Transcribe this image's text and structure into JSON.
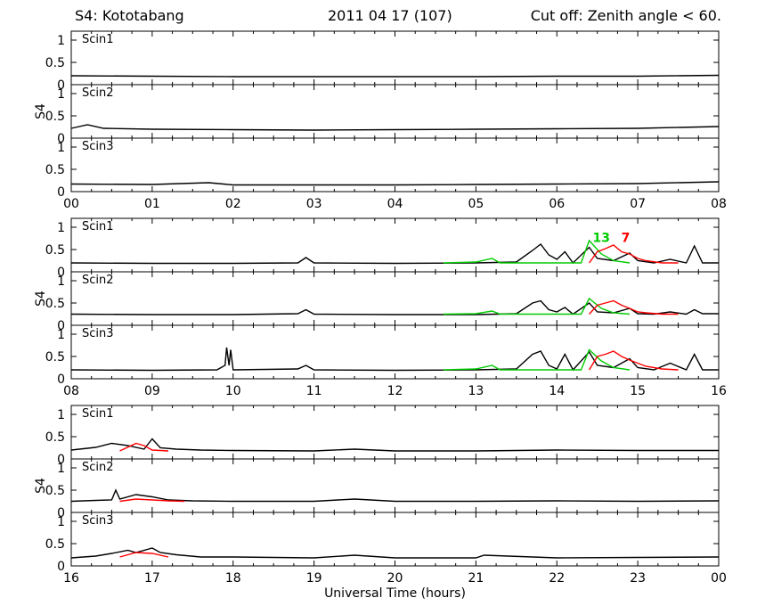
{
  "header": {
    "station": "S4: Kototabang",
    "date": "2011 04 17 (107)",
    "cutoff": "Cut off: Zenith angle < 60."
  },
  "xlabel": "Universal Time (hours)",
  "ylabel": "S4",
  "colors": {
    "axis": "#000000",
    "black_series": "#000000",
    "green_series": "#00cc00",
    "red_series": "#ff0000"
  },
  "chart_data": {
    "type": "line",
    "ylim": [
      0,
      1.2
    ],
    "yticks": [
      0,
      0.5,
      1
    ],
    "receivers": [
      "Scin1",
      "Scin2",
      "Scin3"
    ],
    "groups": [
      {
        "xticks": [
          "00",
          "01",
          "02",
          "03",
          "04",
          "05",
          "06",
          "07",
          "08"
        ],
        "xlim": [
          0,
          8
        ],
        "panels": [
          {
            "receiver": "Scin1",
            "series": [
              {
                "color": "black",
                "x": [
                  0,
                  1,
                  2,
                  3,
                  4,
                  5,
                  6,
                  7,
                  8
                ],
                "y": [
                  0.2,
                  0.19,
                  0.18,
                  0.18,
                  0.18,
                  0.18,
                  0.19,
                  0.19,
                  0.21
                ]
              }
            ]
          },
          {
            "receiver": "Scin2",
            "series": [
              {
                "color": "black",
                "x": [
                  0,
                  0.2,
                  0.4,
                  1,
                  2,
                  3,
                  4,
                  5,
                  6,
                  7,
                  8
                ],
                "y": [
                  0.22,
                  0.3,
                  0.22,
                  0.2,
                  0.19,
                  0.18,
                  0.19,
                  0.2,
                  0.21,
                  0.22,
                  0.26
                ]
              }
            ]
          },
          {
            "receiver": "Scin3",
            "series": [
              {
                "color": "black",
                "x": [
                  0,
                  1,
                  1.7,
                  2,
                  3,
                  4,
                  5,
                  6,
                  7,
                  8
                ],
                "y": [
                  0.17,
                  0.16,
                  0.2,
                  0.15,
                  0.15,
                  0.15,
                  0.16,
                  0.17,
                  0.18,
                  0.22
                ]
              }
            ]
          }
        ]
      },
      {
        "xticks": [
          "08",
          "09",
          "10",
          "11",
          "12",
          "13",
          "14",
          "15",
          "16"
        ],
        "xlim": [
          8,
          16
        ],
        "annotations": [
          {
            "text": "13",
            "color": "green",
            "x": 14.55,
            "y": 0.75
          },
          {
            "text": "7",
            "color": "red",
            "x": 14.85,
            "y": 0.75
          }
        ],
        "panels": [
          {
            "receiver": "Scin1",
            "series": [
              {
                "color": "black",
                "x": [
                  8,
                  9,
                  10,
                  10.8,
                  10.9,
                  11,
                  12,
                  13,
                  13.5,
                  13.7,
                  13.8,
                  13.9,
                  14.0,
                  14.1,
                  14.2,
                  14.4,
                  14.5,
                  14.7,
                  14.9,
                  15.0,
                  15.2,
                  15.4,
                  15.6,
                  15.7,
                  15.8,
                  16
                ],
                "y": [
                  0.2,
                  0.19,
                  0.19,
                  0.2,
                  0.32,
                  0.2,
                  0.19,
                  0.2,
                  0.22,
                  0.48,
                  0.62,
                  0.38,
                  0.28,
                  0.45,
                  0.2,
                  0.55,
                  0.3,
                  0.25,
                  0.42,
                  0.25,
                  0.2,
                  0.28,
                  0.2,
                  0.58,
                  0.2,
                  0.2
                ]
              },
              {
                "color": "green",
                "x": [
                  12.6,
                  13.0,
                  13.2,
                  13.3,
                  13.5,
                  14.3,
                  14.4,
                  14.55,
                  14.7,
                  14.9
                ],
                "y": [
                  0.2,
                  0.22,
                  0.3,
                  0.2,
                  0.2,
                  0.2,
                  0.7,
                  0.4,
                  0.25,
                  0.2
                ]
              },
              {
                "color": "red",
                "x": [
                  14.4,
                  14.5,
                  14.6,
                  14.7,
                  14.8,
                  14.9,
                  15.0,
                  15.1,
                  15.3,
                  15.5
                ],
                "y": [
                  0.2,
                  0.45,
                  0.52,
                  0.6,
                  0.45,
                  0.4,
                  0.3,
                  0.25,
                  0.2,
                  0.2
                ]
              }
            ]
          },
          {
            "receiver": "Scin2",
            "series": [
              {
                "color": "black",
                "x": [
                  8,
                  9,
                  10,
                  10.8,
                  10.9,
                  11,
                  12,
                  13,
                  13.5,
                  13.7,
                  13.8,
                  13.9,
                  14.0,
                  14.1,
                  14.2,
                  14.4,
                  14.5,
                  14.7,
                  14.9,
                  15.0,
                  15.2,
                  15.4,
                  15.6,
                  15.7,
                  15.8,
                  16
                ],
                "y": [
                  0.25,
                  0.24,
                  0.24,
                  0.26,
                  0.35,
                  0.25,
                  0.24,
                  0.24,
                  0.26,
                  0.5,
                  0.55,
                  0.35,
                  0.3,
                  0.4,
                  0.25,
                  0.5,
                  0.3,
                  0.28,
                  0.38,
                  0.26,
                  0.25,
                  0.3,
                  0.25,
                  0.35,
                  0.26,
                  0.26
                ]
              },
              {
                "color": "green",
                "x": [
                  12.6,
                  13.0,
                  13.2,
                  13.3,
                  13.5,
                  14.3,
                  14.4,
                  14.55,
                  14.7,
                  14.9
                ],
                "y": [
                  0.25,
                  0.26,
                  0.32,
                  0.25,
                  0.25,
                  0.25,
                  0.6,
                  0.38,
                  0.28,
                  0.25
                ]
              },
              {
                "color": "red",
                "x": [
                  14.4,
                  14.5,
                  14.6,
                  14.7,
                  14.8,
                  14.9,
                  15.0,
                  15.1,
                  15.3,
                  15.5
                ],
                "y": [
                  0.25,
                  0.45,
                  0.5,
                  0.55,
                  0.45,
                  0.38,
                  0.3,
                  0.28,
                  0.25,
                  0.25
                ]
              }
            ]
          },
          {
            "receiver": "Scin3",
            "series": [
              {
                "color": "black",
                "x": [
                  8,
                  9,
                  9.8,
                  9.9,
                  9.92,
                  9.95,
                  9.97,
                  10,
                  10.8,
                  10.9,
                  11,
                  12,
                  13,
                  13.5,
                  13.7,
                  13.8,
                  13.9,
                  14.0,
                  14.1,
                  14.2,
                  14.4,
                  14.5,
                  14.7,
                  14.9,
                  15.0,
                  15.2,
                  15.4,
                  15.6,
                  15.7,
                  15.8,
                  16
                ],
                "y": [
                  0.2,
                  0.19,
                  0.2,
                  0.3,
                  0.7,
                  0.3,
                  0.65,
                  0.2,
                  0.22,
                  0.3,
                  0.2,
                  0.19,
                  0.2,
                  0.22,
                  0.55,
                  0.62,
                  0.3,
                  0.22,
                  0.55,
                  0.2,
                  0.6,
                  0.3,
                  0.25,
                  0.45,
                  0.25,
                  0.2,
                  0.35,
                  0.2,
                  0.55,
                  0.2,
                  0.2
                ]
              },
              {
                "color": "green",
                "x": [
                  12.6,
                  13.0,
                  13.2,
                  13.3,
                  13.5,
                  14.3,
                  14.4,
                  14.55,
                  14.7,
                  14.9
                ],
                "y": [
                  0.2,
                  0.22,
                  0.3,
                  0.2,
                  0.2,
                  0.2,
                  0.65,
                  0.4,
                  0.25,
                  0.2
                ]
              },
              {
                "color": "red",
                "x": [
                  14.4,
                  14.5,
                  14.6,
                  14.7,
                  14.8,
                  14.9,
                  15.0,
                  15.1,
                  15.3,
                  15.5
                ],
                "y": [
                  0.2,
                  0.5,
                  0.55,
                  0.62,
                  0.5,
                  0.42,
                  0.35,
                  0.28,
                  0.22,
                  0.2
                ]
              }
            ]
          }
        ]
      },
      {
        "xticks": [
          "16",
          "17",
          "18",
          "19",
          "20",
          "21",
          "22",
          "23",
          "00"
        ],
        "xlim": [
          16,
          24
        ],
        "panels": [
          {
            "receiver": "Scin1",
            "series": [
              {
                "color": "black",
                "x": [
                  16,
                  16.3,
                  16.5,
                  16.7,
                  16.9,
                  17.0,
                  17.1,
                  17.3,
                  17.6,
                  18,
                  19,
                  19.5,
                  20,
                  21,
                  22,
                  23,
                  24
                ],
                "y": [
                  0.2,
                  0.26,
                  0.35,
                  0.3,
                  0.22,
                  0.45,
                  0.25,
                  0.22,
                  0.2,
                  0.19,
                  0.18,
                  0.22,
                  0.18,
                  0.18,
                  0.2,
                  0.19,
                  0.19
                ]
              },
              {
                "color": "red",
                "x": [
                  16.6,
                  16.8,
                  16.9,
                  17.0,
                  17.2
                ],
                "y": [
                  0.18,
                  0.35,
                  0.3,
                  0.2,
                  0.18
                ]
              }
            ]
          },
          {
            "receiver": "Scin2",
            "series": [
              {
                "color": "black",
                "x": [
                  16,
                  16.3,
                  16.5,
                  16.55,
                  16.6,
                  16.8,
                  17.0,
                  17.2,
                  17.5,
                  18,
                  19,
                  19.5,
                  20,
                  21,
                  22,
                  23,
                  24
                ],
                "y": [
                  0.25,
                  0.27,
                  0.28,
                  0.5,
                  0.3,
                  0.4,
                  0.35,
                  0.28,
                  0.26,
                  0.25,
                  0.25,
                  0.3,
                  0.25,
                  0.25,
                  0.26,
                  0.25,
                  0.26
                ]
              },
              {
                "color": "red",
                "x": [
                  16.6,
                  16.8,
                  17.0,
                  17.2,
                  17.4
                ],
                "y": [
                  0.25,
                  0.3,
                  0.28,
                  0.26,
                  0.25
                ]
              }
            ]
          },
          {
            "receiver": "Scin3",
            "series": [
              {
                "color": "black",
                "x": [
                  16,
                  16.3,
                  16.5,
                  16.7,
                  16.8,
                  17.0,
                  17.1,
                  17.3,
                  17.6,
                  18,
                  19,
                  19.5,
                  20,
                  21,
                  21.1,
                  22,
                  23,
                  24
                ],
                "y": [
                  0.18,
                  0.22,
                  0.28,
                  0.35,
                  0.3,
                  0.4,
                  0.3,
                  0.25,
                  0.2,
                  0.2,
                  0.18,
                  0.24,
                  0.18,
                  0.18,
                  0.24,
                  0.18,
                  0.19,
                  0.2
                ]
              },
              {
                "color": "red",
                "x": [
                  16.6,
                  16.8,
                  17.0,
                  17.2
                ],
                "y": [
                  0.2,
                  0.3,
                  0.28,
                  0.2
                ]
              }
            ]
          }
        ]
      }
    ]
  }
}
